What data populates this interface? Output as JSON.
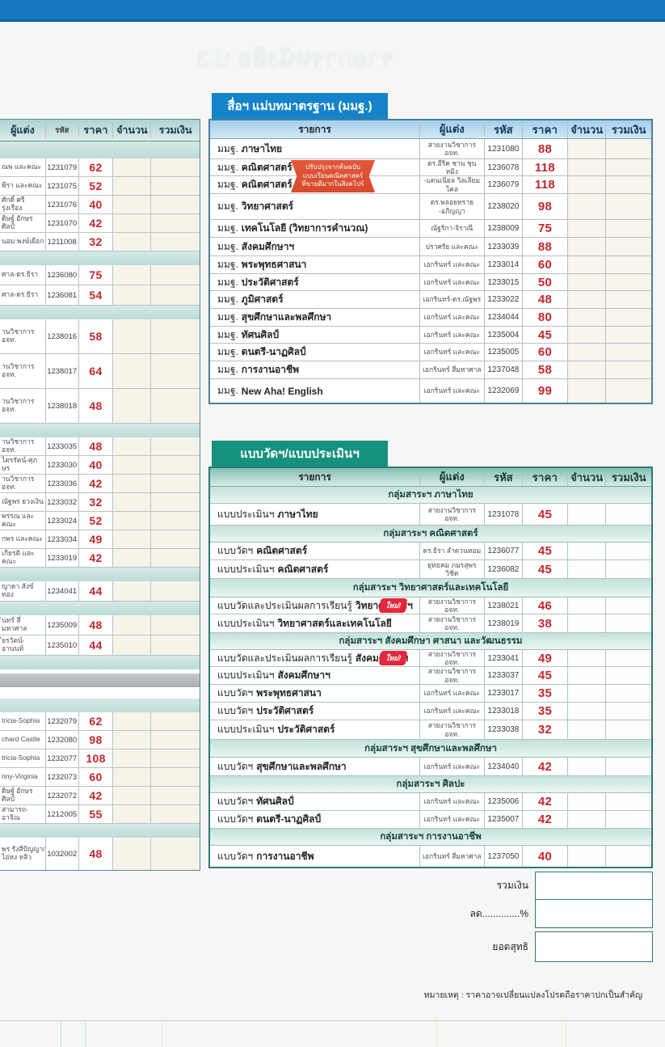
{
  "page": {
    "ghost_text": "รายการหนังสือ ป.3",
    "note": "หมายเหตุ : ราคาอาจเปลี่ยนแปลงโปรดถือราคาปกเป็นสำคัญ"
  },
  "columns": {
    "item": "รายการ",
    "author": "ผู้แต่ง",
    "code": "รหัส",
    "price": "ราคา",
    "qty": "จำนวน",
    "total": "รวมเงิน"
  },
  "left_table": {
    "rows": [
      {
        "kind": "band b21"
      },
      {
        "kind": "item",
        "author": "ณพ และคณะ",
        "code": "1231079",
        "price": "62"
      },
      {
        "kind": "item",
        "author": "พีรา และคณะ",
        "code": "1231075",
        "price": "52"
      },
      {
        "kind": "item",
        "author": "ศักดิ์ ศรีรุ่งเรือง",
        "code": "1231076",
        "price": "40"
      },
      {
        "kind": "item",
        "author": "ดิษฐ์ อักษรศิลป์",
        "code": "1231070",
        "price": "42"
      },
      {
        "kind": "item",
        "author": "นอม พงษ์เผือก",
        "code": "1211008",
        "price": "32"
      },
      {
        "kind": "band"
      },
      {
        "kind": "item md",
        "author": "ศาล-ดร.ธิรา",
        "code": "1236080",
        "price": "75"
      },
      {
        "kind": "item md",
        "author": "ศาล-ดร.ธิรา",
        "code": "1236081",
        "price": "54"
      },
      {
        "kind": "band"
      },
      {
        "kind": "item tall",
        "author": "านวิชาการ อจท.",
        "code": "1238016",
        "price": "58"
      },
      {
        "kind": "item tall",
        "author": "านวิชาการ อจท.",
        "code": "1238017",
        "price": "64"
      },
      {
        "kind": "item tall",
        "author": "านวิชาการ อจท.",
        "code": "1238018",
        "price": "48"
      },
      {
        "kind": "band"
      },
      {
        "kind": "item",
        "author": "านวิชาการ อจท.",
        "code": "1233035",
        "price": "48"
      },
      {
        "kind": "item",
        "author": "ไตรรัตน์-ศุภษร",
        "code": "1233030",
        "price": "40"
      },
      {
        "kind": "item",
        "author": "านวิชาการ อจท.",
        "code": "1233036",
        "price": "42"
      },
      {
        "kind": "item",
        "author": "ณัฐพร ยวงเงิน",
        "code": "1233032",
        "price": "32"
      },
      {
        "kind": "item",
        "author": "พรรณ และคณะ",
        "code": "1233024",
        "price": "52"
      },
      {
        "kind": "item",
        "author": "กพร และคณะ",
        "code": "1233034",
        "price": "49"
      },
      {
        "kind": "item",
        "author": "เกียรติ และคณะ",
        "code": "1233019",
        "price": "42"
      },
      {
        "kind": "band"
      },
      {
        "kind": "item md",
        "author": "ญาดา สังข์ทอง",
        "code": "1234041",
        "price": "44"
      },
      {
        "kind": "band"
      },
      {
        "kind": "item md",
        "author": "ินทร์ สี่มหาศาล",
        "code": "1235009",
        "price": "48"
      },
      {
        "kind": "item md",
        "author": "ียรวัตน์-อานนท์",
        "code": "1235010",
        "price": "44"
      },
      {
        "kind": "band"
      },
      {
        "kind": "band gray"
      },
      {
        "kind": "band sep"
      },
      {
        "kind": "item",
        "author": "tricia-Sophia",
        "code": "1232079",
        "price": "62"
      },
      {
        "kind": "item",
        "author": "chard Castle",
        "code": "1232080",
        "price": "98"
      },
      {
        "kind": "item",
        "author": "tricia-Sophia",
        "code": "1232077",
        "price": "108"
      },
      {
        "kind": "item",
        "author": "nny-Virginia",
        "code": "1232073",
        "price": "60"
      },
      {
        "kind": "item",
        "author": "ดิษฐ์ อักษรศิลป์",
        "code": "1232072",
        "price": "42"
      },
      {
        "kind": "item",
        "author": "สามารถ-อาจิณ",
        "code": "1212005",
        "price": "55"
      },
      {
        "kind": "band"
      },
      {
        "kind": "item xtall",
        "author": "พร รังสีปัญญา/ ไอ่หง หลิว",
        "code": "1032002",
        "price": "48"
      }
    ]
  },
  "media_table": {
    "title": "สื่อฯ แม่บทมาตรฐาน (มมฐ.)",
    "ribbon": {
      "line1": "ปรับปรุงจากต้นฉบับ",
      "line2": "แบบเรียนคณิตศาสตร์",
      "line3": "ที่ขายดีมากในสิงคโปร์"
    },
    "rows": [
      {
        "kind": "h25",
        "prefix": "มมฐ.",
        "name": "ภาษาไทย",
        "author": "สายงานวิชาการ อจท.",
        "code": "1231080",
        "price": "88"
      },
      {
        "kind": "h21",
        "prefix": "มมฐ.",
        "name": "คณิตศาสตร์ เล่ม 1",
        "author": "ดร.อีริค ชาน ชุน หมิง",
        "code": "1236078",
        "price": "118"
      },
      {
        "kind": "h22",
        "prefix": "มมฐ.",
        "name": "คณิตศาสตร์ เล่ม 2",
        "author": "-แดนเนียล วิลเลียม โคล",
        "code": "1236079",
        "price": "118"
      },
      {
        "kind": "h32",
        "prefix": "มมฐ.",
        "name": "วิทยาศาสตร์",
        "author": "ดร.พลอยทราย -อภิญญา",
        "code": "1238020",
        "price": "98"
      },
      {
        "kind": "h22",
        "prefix": "มมฐ.",
        "name": "เทคโนโลยี (วิทยาการคำนวณ)",
        "author": "ณัฐริกา-จิราณี",
        "code": "1238009",
        "price": "75"
      },
      {
        "kind": "h23",
        "prefix": "มมฐ.",
        "name": "สังคมศึกษาฯ",
        "author": "ปราศรัย และคณะ",
        "code": "1233039",
        "price": "88"
      },
      {
        "kind": "h22",
        "prefix": "มมฐ.",
        "name": "พระพุทธศาสนา",
        "author": "เอกรินทร์ และคณะ",
        "code": "1233014",
        "price": "60"
      },
      {
        "kind": "h21",
        "prefix": "มมฐ.",
        "name": "ประวัติศาสตร์",
        "author": "เอกรินทร์ และคณะ",
        "code": "1233015",
        "price": "50"
      },
      {
        "kind": "h22",
        "prefix": "มมฐ.",
        "name": "ภูมิศาสตร์",
        "author": "เอกรินทร์-ดร.ณัฐพร",
        "code": "1233022",
        "price": "48"
      },
      {
        "kind": "h22",
        "prefix": "มมฐ.",
        "name": "สุขศึกษาและพลศึกษา",
        "author": "เอกรินทร์ และคณะ",
        "code": "1234044",
        "price": "80"
      },
      {
        "kind": "h21",
        "prefix": "มมฐ.",
        "name": "ทัศนศิลป์",
        "author": "เอกรินทร์ และคณะ",
        "code": "1235004",
        "price": "45"
      },
      {
        "kind": "h22",
        "prefix": "มมฐ.",
        "name": "ดนตรี-นาฏศิลป์",
        "author": "เอกรินทร์ และคณะ",
        "code": "1235005",
        "price": "60"
      },
      {
        "kind": "h22",
        "prefix": "มมฐ.",
        "name": "การงานอาชีพ",
        "author": "เอกรินทร์ สี่มหาศาล",
        "code": "1237048",
        "price": "58"
      },
      {
        "kind": "h29",
        "prefix": "มมฐ.",
        "name": "New Aha! English",
        "author": "เอกรินทร์ และคณะ",
        "code": "1232069",
        "price": "99"
      }
    ]
  },
  "assessment_table": {
    "title": "แบบวัดฯ/แบบประเมินฯ",
    "rows": [
      {
        "kind": "group h21",
        "label": "กลุ่มสาระฯ ภาษาไทย"
      },
      {
        "kind": "item h27",
        "prefix": "แบบประเมินฯ",
        "name": "ภาษาไทย",
        "author": "สายงานวิชาการ อจท.",
        "code": "1231078",
        "price": "45"
      },
      {
        "kind": "group h21",
        "label": "กลุ่มสาระฯ คณิตศาสตร์"
      },
      {
        "kind": "item h22",
        "prefix": "แบบวัดฯ",
        "name": "คณิตศาสตร์",
        "author": "ดร.ธิรา ลำดวนหอม",
        "code": "1236077",
        "price": "45"
      },
      {
        "kind": "item h23",
        "prefix": "แบบประเมินฯ",
        "name": "คณิตศาสตร์",
        "author": "ยุทธคม ภมรสุพรวิชิต",
        "code": "1236082",
        "price": "45"
      },
      {
        "kind": "group h23",
        "label": "กลุ่มสาระฯ วิทยาศาสตร์และเทคโนโลยี"
      },
      {
        "kind": "item h21",
        "prefix": "แบบวัดและประเมินผลการเรียนรู้",
        "name": "วิทยาศาสตร์ฯ",
        "badge": "ใหม่!",
        "author": "สายงานวิชาการ อจท.",
        "code": "1238021",
        "price": "46"
      },
      {
        "kind": "item h23",
        "prefix": "แบบประเมินฯ",
        "name": "วิทยาศาสตร์และเทคโนโลยี",
        "author": "สายงานวิชาการ อจท.",
        "code": "1238019",
        "price": "38"
      },
      {
        "kind": "group h21",
        "label": "กลุ่มสาระฯ สังคมศึกษา ศาสนา และวัฒนธรรม"
      },
      {
        "kind": "item h21",
        "prefix": "แบบวัดและประเมินผลการเรียนรู้",
        "name": "สังคมศึกษาฯ",
        "badge": "ใหม่!",
        "author": "สายงานวิชาการ อจท.",
        "code": "1233041",
        "price": "49"
      },
      {
        "kind": "item h22",
        "prefix": "แบบประเมินฯ",
        "name": "สังคมศึกษาฯ",
        "author": "สายงานวิชาการ อจท.",
        "code": "1233037",
        "price": "45"
      },
      {
        "kind": "item h22",
        "prefix": "แบบวัดฯ",
        "name": "พระพุทธศาสนา",
        "author": "เอกรินทร์ และคณะ",
        "code": "1233017",
        "price": "35"
      },
      {
        "kind": "item h22",
        "prefix": "แบบวัดฯ",
        "name": "ประวัติศาสตร์",
        "author": "เอกรินทร์ และคณะ",
        "code": "1233018",
        "price": "35"
      },
      {
        "kind": "item h24",
        "prefix": "แบบประเมินฯ",
        "name": "ประวัติศาสตร์",
        "author": "สายงานวิชาการ อจท.",
        "code": "1233038",
        "price": "32"
      },
      {
        "kind": "group h22",
        "label": "กลุ่มสาระฯ สุขศึกษาและพลศึกษา"
      },
      {
        "kind": "item h23",
        "prefix": "แบบวัดฯ",
        "name": "สุขศึกษาและพลศึกษา",
        "author": "เอกรินทร์ และคณะ",
        "code": "1234040",
        "price": "42"
      },
      {
        "kind": "group h21",
        "label": "กลุ่มสาระฯ ศิลปะ"
      },
      {
        "kind": "item h22",
        "prefix": "แบบวัดฯ",
        "name": "ทัศนศิลป์",
        "author": "เอกรินทร์ และคณะ",
        "code": "1235006",
        "price": "42"
      },
      {
        "kind": "item h22",
        "prefix": "แบบวัดฯ",
        "name": "ดนตรี-นาฏศิลป์",
        "author": "เอกรินทร์ และคณะ",
        "code": "1235007",
        "price": "42"
      },
      {
        "kind": "group h21",
        "label": "กลุ่มสาระฯ การงานอาชีพ"
      },
      {
        "kind": "item h26",
        "prefix": "แบบวัดฯ",
        "name": "การงานอาชีพ",
        "author": "เอกรินทร์ สี่มหาศาล",
        "code": "1237050",
        "price": "40"
      }
    ]
  },
  "summary": {
    "total_label": "รวมเงิน",
    "discount_label": "ลด..............%",
    "net_label": "ยอดสุทธิ"
  },
  "colors": {
    "accent_blue": "#1583c9",
    "accent_teal": "#15917e",
    "price_red": "#c2272d",
    "badge_red": "#e4273c",
    "ribbon_orange": "#e0512f",
    "top_bar_blue": "#1778c0"
  }
}
